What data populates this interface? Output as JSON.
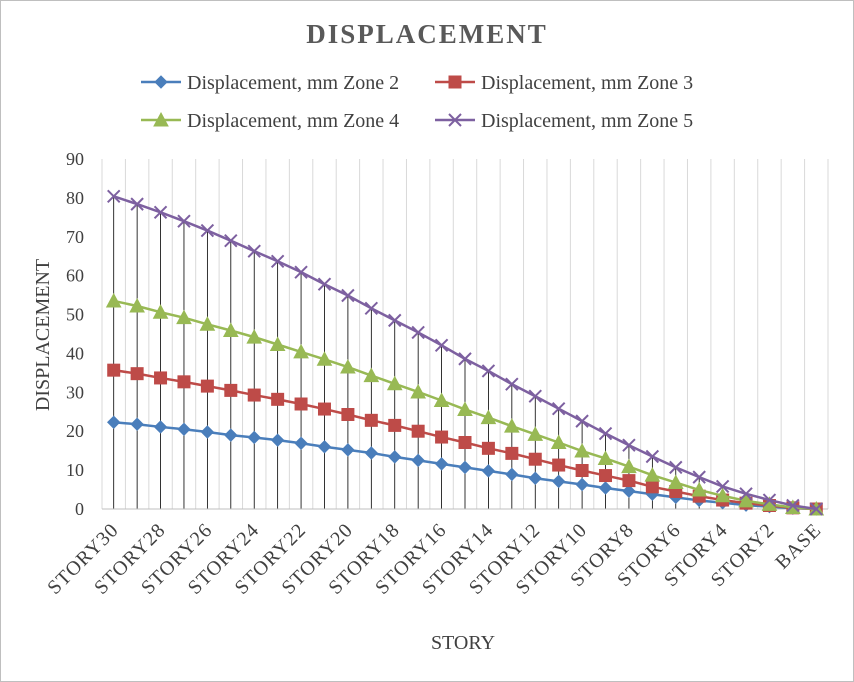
{
  "chart_data": {
    "type": "line",
    "title": "DISPLACEMENT",
    "xlabel": "STORY",
    "ylabel": "DISPLACEMENT",
    "ylim": [
      0,
      90
    ],
    "yticks": [
      0,
      10,
      20,
      30,
      40,
      50,
      60,
      70,
      80,
      90
    ],
    "grid": "vertical",
    "legend_position": "top",
    "categories": [
      "STORY30",
      "STORY29",
      "STORY28",
      "STORY27",
      "STORY26",
      "STORY25",
      "STORY24",
      "STORY23",
      "STORY22",
      "STORY21",
      "STORY20",
      "STORY19",
      "STORY18",
      "STORY17",
      "STORY16",
      "STORY15",
      "STORY14",
      "STORY13",
      "STORY12",
      "STORY11",
      "STORY10",
      "STORY9",
      "STORY8",
      "STORY7",
      "STORY6",
      "STORY5",
      "STORY4",
      "STORY3",
      "STORY2",
      "STORY1",
      "BASE"
    ],
    "shown_tick_labels": [
      "STORY30",
      "STORY28",
      "STORY26",
      "STORY24",
      "STORY22",
      "STORY20",
      "STORY18",
      "STORY16",
      "STORY14",
      "STORY12",
      "STORY10",
      "STORY8",
      "STORY6",
      "STORY4",
      "STORY2",
      "BASE"
    ],
    "series": [
      {
        "name": "Displacement, mm Zone 2",
        "color": "#4a7ebb",
        "marker": "diamond",
        "values": [
          22.3,
          21.8,
          21.1,
          20.5,
          19.8,
          19.0,
          18.4,
          17.7,
          16.9,
          16.0,
          15.2,
          14.4,
          13.4,
          12.5,
          11.6,
          10.7,
          9.8,
          8.9,
          7.9,
          7.1,
          6.3,
          5.4,
          4.6,
          3.8,
          3.0,
          2.2,
          1.6,
          1.0,
          0.6,
          0.2,
          0
        ]
      },
      {
        "name": "Displacement, mm Zone 3",
        "color": "#be4b48",
        "marker": "square",
        "values": [
          35.7,
          34.8,
          33.7,
          32.7,
          31.6,
          30.5,
          29.3,
          28.2,
          27.0,
          25.7,
          24.3,
          22.8,
          21.5,
          20.0,
          18.5,
          17.1,
          15.6,
          14.3,
          12.8,
          11.3,
          9.9,
          8.6,
          7.3,
          5.7,
          4.5,
          3.3,
          2.3,
          1.5,
          0.9,
          0.3,
          0
        ]
      },
      {
        "name": "Displacement, mm Zone 4",
        "color": "#98b954",
        "marker": "triangle",
        "values": [
          53.5,
          52.2,
          50.6,
          49.2,
          47.5,
          45.9,
          44.2,
          42.3,
          40.4,
          38.5,
          36.5,
          34.3,
          32.2,
          30.1,
          27.9,
          25.6,
          23.5,
          21.3,
          19.2,
          17.1,
          14.9,
          13.0,
          10.9,
          8.7,
          6.8,
          4.9,
          3.4,
          2.1,
          1.2,
          0.4,
          0
        ]
      },
      {
        "name": "Displacement, mm Zone 5",
        "color": "#7d60a0",
        "marker": "x",
        "values": [
          80.4,
          78.4,
          76.3,
          74.0,
          71.6,
          69.0,
          66.3,
          63.7,
          60.9,
          57.8,
          54.9,
          51.6,
          48.5,
          45.4,
          42.1,
          38.6,
          35.5,
          32.1,
          29.0,
          25.8,
          22.6,
          19.4,
          16.4,
          13.5,
          10.7,
          8.2,
          5.8,
          3.9,
          2.3,
          0.9,
          0
        ]
      }
    ]
  }
}
